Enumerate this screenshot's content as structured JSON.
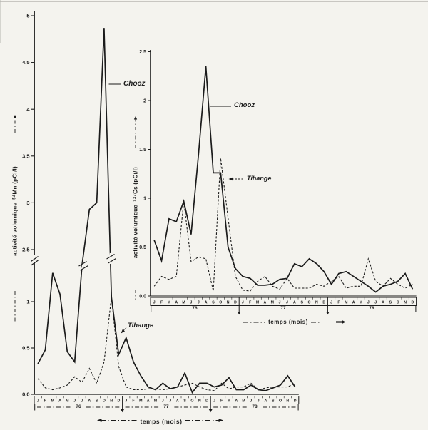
{
  "figure": {
    "ink": "#1b1b1b",
    "paper": "#f4f3ee",
    "main_ylabel": {
      "prefix": "activité volumique",
      "isotope": "54",
      "rest": "Mn (pCi/l)"
    },
    "inset_ylabel": {
      "prefix": "activité volumique",
      "isotope": "137",
      "rest": "Cs (pCi/l)"
    }
  },
  "chart_data": [
    {
      "type": "line",
      "title": "Volumetric activity of 54Mn in water, Chooz vs Tihange, 1976-1978",
      "xlabel": "temps (mois)",
      "ylabel": "activité volumique 54Mn (pCi/l)",
      "x_months": [
        "J",
        "F",
        "M",
        "A",
        "M",
        "J",
        "J",
        "A",
        "S",
        "O",
        "N",
        "D"
      ],
      "years": [
        "76",
        "77",
        "78"
      ],
      "ylim": [
        0,
        5
      ],
      "y_axis_break": [
        1.35,
        2.5
      ],
      "y_ticks": [
        0,
        0.5,
        1,
        2.5,
        3,
        3.5,
        4,
        4.5,
        5
      ],
      "y_tick_labels": [
        "0.0",
        "0.5",
        "1",
        "2.5",
        "3",
        "3.5",
        "4",
        "4.5",
        "5"
      ],
      "grid": false,
      "legend": "inline labels",
      "series": [
        {
          "name": "Chooz",
          "style": "solid",
          "values": [
            0.33,
            0.48,
            1.31,
            1.08,
            0.46,
            0.35,
            1.6,
            2.93,
            3.0,
            4.87,
            1.05,
            0.43,
            0.61,
            0.35,
            0.2,
            0.08,
            0.05,
            0.12,
            0.06,
            0.08,
            0.23,
            0.02,
            0.12,
            0.12,
            0.08,
            0.1,
            0.18,
            0.05,
            0.05,
            0.1,
            0.05,
            0.04,
            0.07,
            0.1,
            0.2,
            0.08
          ]
        },
        {
          "name": "Tihange",
          "style": "dashed",
          "values": [
            0.17,
            0.07,
            0.05,
            0.07,
            0.1,
            0.19,
            0.13,
            0.28,
            0.12,
            0.35,
            1.05,
            0.3,
            0.08,
            0.05,
            0.05,
            0.06,
            0.06,
            0.05,
            0.06,
            0.08,
            0.1,
            0.12,
            0.08,
            0.05,
            0.04,
            0.12,
            0.06,
            0.08,
            0.08,
            0.12,
            0.05,
            0.07,
            0.08,
            0.08,
            0.08,
            0.12
          ]
        }
      ]
    },
    {
      "type": "line",
      "title": "Volumetric activity of 137Cs in water, Chooz vs Tihange, 1976-1978 (inset)",
      "xlabel": "temps (mois)",
      "ylabel": "activité volumique 137Cs (pCi/l)",
      "x_months": [
        "J",
        "F",
        "M",
        "A",
        "M",
        "J",
        "J",
        "A",
        "S",
        "O",
        "N",
        "D"
      ],
      "years": [
        "76",
        "77",
        "78"
      ],
      "ylim": [
        0,
        2.5
      ],
      "y_ticks": [
        0,
        0.5,
        1,
        1.5,
        2,
        2.5
      ],
      "y_tick_labels": [
        "0.0",
        "0.5",
        "1",
        "1.5",
        "2",
        "2.5"
      ],
      "grid": false,
      "legend": "inline labels",
      "series": [
        {
          "name": "Chooz",
          "style": "solid",
          "values": [
            0.57,
            0.36,
            0.79,
            0.76,
            0.97,
            0.63,
            1.45,
            2.35,
            1.26,
            1.26,
            0.5,
            0.28,
            0.2,
            0.18,
            0.11,
            0.11,
            0.12,
            0.17,
            0.18,
            0.33,
            0.3,
            0.38,
            0.33,
            0.25,
            0.12,
            0.23,
            0.25,
            0.2,
            0.15,
            0.1,
            0.04,
            0.1,
            0.12,
            0.15,
            0.23,
            0.07
          ]
        },
        {
          "name": "Tihange",
          "style": "dashed",
          "values": [
            0.1,
            0.2,
            0.17,
            0.2,
            0.97,
            0.35,
            0.4,
            0.38,
            0.05,
            1.41,
            0.8,
            0.2,
            0.06,
            0.05,
            0.15,
            0.2,
            0.1,
            0.07,
            0.18,
            0.08,
            0.08,
            0.08,
            0.12,
            0.1,
            0.15,
            0.2,
            0.08,
            0.1,
            0.1,
            0.38,
            0.15,
            0.1,
            0.18,
            0.12,
            0.08,
            0.12
          ]
        }
      ]
    }
  ]
}
